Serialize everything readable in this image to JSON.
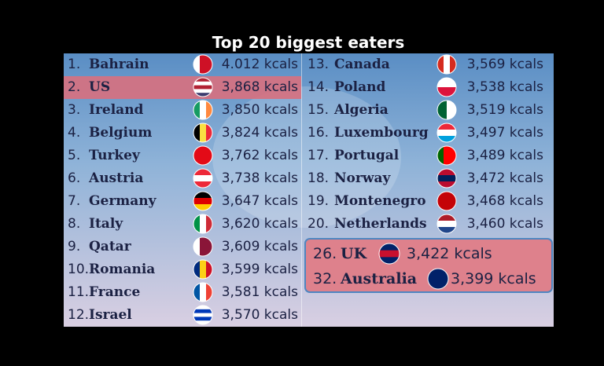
{
  "title": "Top 20 biggest eaters",
  "left": [
    {
      "rank": "1.",
      "country": "Bahrain",
      "kcals": "4.012 kcals"
    },
    {
      "rank": "2.",
      "country": "US",
      "kcals": "3,868 kcals"
    },
    {
      "rank": "3.",
      "country": "Ireland",
      "kcals": "3,850 kcals"
    },
    {
      "rank": "4.",
      "country": "Belgium",
      "kcals": "3,824 kcals"
    },
    {
      "rank": "5.",
      "country": "Turkey",
      "kcals": "3,762 kcals"
    },
    {
      "rank": "6.",
      "country": "Austria",
      "kcals": "3,738 kcals"
    },
    {
      "rank": "7.",
      "country": "Germany",
      "kcals": "3,647 kcals"
    },
    {
      "rank": "8.",
      "country": "Italy",
      "kcals": "3,620 kcals"
    },
    {
      "rank": "9.",
      "country": "Qatar",
      "kcals": "3,609 kcals"
    },
    {
      "rank": "10.",
      "country": "Romania",
      "kcals": "3,599 kcals"
    },
    {
      "rank": "11.",
      "country": "France",
      "kcals": "3,581 kcals"
    },
    {
      "rank": "12.",
      "country": "Israel",
      "kcals": "3,570 kcals"
    }
  ],
  "right": [
    {
      "rank": "13.",
      "country": "Canada",
      "kcals": "3,569 kcals"
    },
    {
      "rank": "14.",
      "country": "Poland",
      "kcals": "3,538 kcals"
    },
    {
      "rank": "15.",
      "country": "Algeria",
      "kcals": "3,519 kcals"
    },
    {
      "rank": "16.",
      "country": "Luxembourg",
      "kcals": "3,497 kcals"
    },
    {
      "rank": "17.",
      "country": "Portugal",
      "kcals": "3,489 kcals"
    },
    {
      "rank": "18.",
      "country": "Norway",
      "kcals": "3,472 kcals"
    },
    {
      "rank": "19.",
      "country": "Montenegro",
      "kcals": "3,468 kcals"
    },
    {
      "rank": "20.",
      "country": "Netherlands",
      "kcals": "3,460 kcals"
    }
  ],
  "highlight": [
    {
      "rank": "26.",
      "country": "UK",
      "kcals": "3,422 kcals"
    },
    {
      "rank": "32.",
      "country": "Australia",
      "kcals": "3,399 kcals"
    }
  ]
}
